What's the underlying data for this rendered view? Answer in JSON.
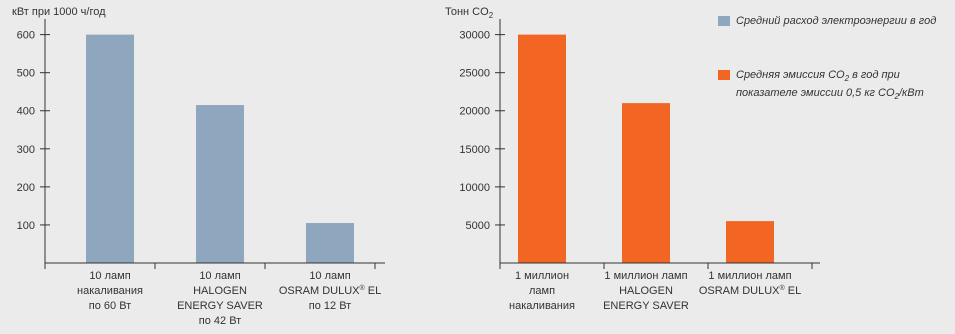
{
  "colors": {
    "energy": "#8fa6bf",
    "co2": "#f26522",
    "axis": "#333333",
    "background": "#ebebeb"
  },
  "legend": {
    "energy": "Средний расход электроэнергии в год",
    "co2": "Средняя эмиссия CO2 в год при показателе эмиссии 0,5 кг CO2/кВт"
  },
  "chart_data": [
    {
      "type": "bar",
      "ylabel": "кВт при 1000 ч/год",
      "ylim": [
        0,
        620
      ],
      "yticks": [
        100,
        200,
        300,
        400,
        500,
        600
      ],
      "categories": [
        [
          "10 ламп",
          "накаливания",
          "по 60 Вт"
        ],
        [
          "10 ламп",
          "HALOGEN",
          "ENERGY SAVER",
          "по 42 Вт"
        ],
        [
          "10 ламп",
          "OSRAM DULUX® EL",
          "по 12 Вт"
        ]
      ],
      "values": [
        600,
        415,
        105
      ],
      "color": "#8fa6bf"
    },
    {
      "type": "bar",
      "ylabel": "Тонн CO2",
      "ylim": [
        0,
        31000
      ],
      "yticks": [
        5000,
        10000,
        15000,
        20000,
        25000,
        30000
      ],
      "ytick_labels": [
        "5000",
        "10000",
        "15000",
        "20000",
        "25000",
        "30000"
      ],
      "categories": [
        [
          "1 миллион",
          "ламп",
          "накаливания"
        ],
        [
          "1 миллион ламп",
          "HALOGEN",
          "ENERGY SAVER"
        ],
        [
          "1 миллион ламп",
          "OSRAM DULUX® EL"
        ]
      ],
      "values": [
        30000,
        21000,
        5500
      ],
      "color": "#f26522"
    }
  ]
}
